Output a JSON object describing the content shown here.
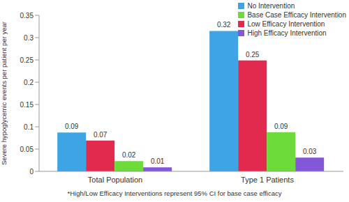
{
  "chart_data": {
    "type": "bar",
    "categories": [
      "Total Population",
      "Type 1 Patients"
    ],
    "ylabel": "Severe hypoglycemic events per patient per year",
    "annotation": "*High/Low Efficacy Interventions represent 95% CI for base case efficacy",
    "series": [
      {
        "name": "No Intervention",
        "color": "#3fa4e4",
        "values": [
          0.087,
          0.315
        ],
        "value_labels": [
          "0.09",
          "0.32"
        ]
      },
      {
        "name": "Base Case Efficacy Intervention",
        "color": "#6ddc3a",
        "values": [
          0.023,
          0.088
        ],
        "value_labels": [
          "0.02",
          "0.09"
        ]
      },
      {
        "name": "Low Efficacy Intervention",
        "color": "#e22a4e",
        "values": [
          0.069,
          0.249
        ],
        "value_labels": [
          "0.07",
          "0.25"
        ]
      },
      {
        "name": "High Efficacy Intervention",
        "color": "#8456d8",
        "values": [
          0.009,
          0.031
        ],
        "value_labels": [
          "0.01",
          "0.03"
        ]
      }
    ],
    "ylim": [
      0,
      0.35
    ],
    "yticks": [
      0,
      0.05,
      0.1,
      0.15,
      0.2,
      0.25,
      0.3,
      0.35
    ],
    "grid": false,
    "legend": "upper right",
    "data_labels": true
  }
}
